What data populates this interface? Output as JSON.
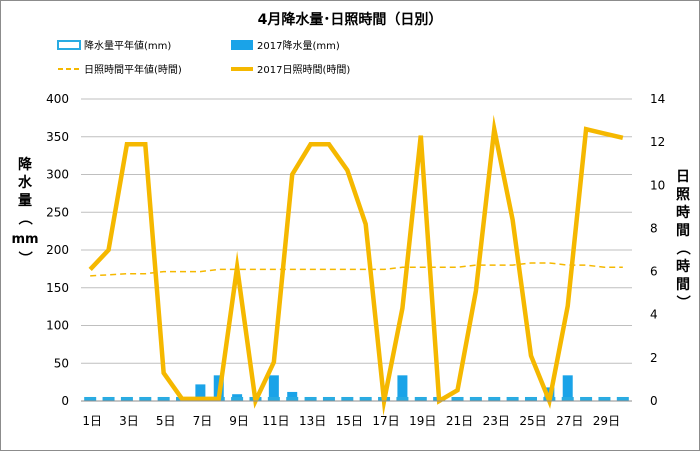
{
  "chart_data": {
    "type": "bar+line",
    "title": "4月降水量･日照時間（日別）",
    "legend": {
      "items": [
        {
          "key": "precip_normal",
          "label": "降水量平年値(mm)",
          "style": "bar-outline",
          "color": "#29abe2"
        },
        {
          "key": "precip_2017",
          "label": "2017降水量(mm)",
          "style": "bar",
          "color": "#1aa3e8"
        },
        {
          "key": "sun_normal",
          "label": "日照時間平年値(時間)",
          "style": "dashed-line",
          "color": "#f5b800"
        },
        {
          "key": "sun_2017",
          "label": "2017日照時間(時間)",
          "style": "line",
          "color": "#f5b800"
        }
      ],
      "position": "top"
    },
    "y_left": {
      "label_chars": [
        "降",
        "水",
        "量",
        "（",
        "mm",
        "）"
      ],
      "range": [
        0,
        400
      ],
      "ticks": [
        "0",
        "50",
        "100",
        "150",
        "200",
        "250",
        "300",
        "350",
        "400"
      ]
    },
    "y_right": {
      "label_chars": [
        "日",
        "照",
        "時",
        "間",
        "（",
        "時",
        "間",
        "）"
      ],
      "range": [
        0,
        14
      ],
      "ticks": [
        "0",
        "2",
        "4",
        "6",
        "8",
        "10",
        "12",
        "14"
      ]
    },
    "x_tick_labels": [
      "1日",
      "3日",
      "5日",
      "7日",
      "9日",
      "11日",
      "13日",
      "15日",
      "17日",
      "19日",
      "21日",
      "23日",
      "25日",
      "27日",
      "29日"
    ],
    "x_days": [
      1,
      2,
      3,
      4,
      5,
      6,
      7,
      8,
      9,
      10,
      11,
      12,
      13,
      14,
      15,
      16,
      17,
      18,
      19,
      20,
      21,
      22,
      23,
      24,
      25,
      26,
      27,
      28,
      29,
      30
    ],
    "series": [
      {
        "name": "降水量平年値(mm)",
        "axis": "left",
        "kind": "bar-outline",
        "values": [
          4,
          4,
          4,
          4,
          4,
          4,
          4,
          4,
          4,
          4,
          4,
          4,
          4,
          4,
          4,
          4,
          4,
          4,
          4,
          4,
          4,
          4,
          4,
          4,
          4,
          4,
          4,
          4,
          4,
          4
        ]
      },
      {
        "name": "2017降水量(mm)",
        "axis": "left",
        "kind": "bar",
        "values": [
          0,
          0,
          0,
          0,
          0,
          0,
          22,
          34,
          9,
          0,
          34,
          12,
          0,
          0,
          0,
          2,
          0,
          34,
          0,
          0,
          0,
          2,
          0,
          0,
          0,
          18,
          34,
          0,
          0,
          0
        ]
      },
      {
        "name": "日照時間平年値(時間)",
        "axis": "right",
        "kind": "dashed-line",
        "values": [
          5.8,
          5.85,
          5.9,
          5.9,
          6.0,
          6.0,
          6.0,
          6.1,
          6.1,
          6.1,
          6.1,
          6.1,
          6.1,
          6.1,
          6.1,
          6.1,
          6.1,
          6.2,
          6.2,
          6.2,
          6.2,
          6.3,
          6.3,
          6.3,
          6.4,
          6.4,
          6.3,
          6.3,
          6.2,
          6.2
        ]
      },
      {
        "name": "2017日照時間(時間)",
        "axis": "right",
        "kind": "line",
        "values": [
          6.1,
          7.0,
          11.9,
          11.9,
          1.3,
          0.1,
          0.1,
          0.1,
          6.2,
          0.0,
          1.8,
          10.5,
          11.9,
          11.9,
          10.7,
          8.2,
          0.0,
          4.3,
          12.3,
          0.0,
          0.5,
          5.1,
          12.6,
          8.4,
          2.1,
          0.0,
          4.4,
          12.6,
          12.4,
          12.2
        ]
      }
    ]
  }
}
